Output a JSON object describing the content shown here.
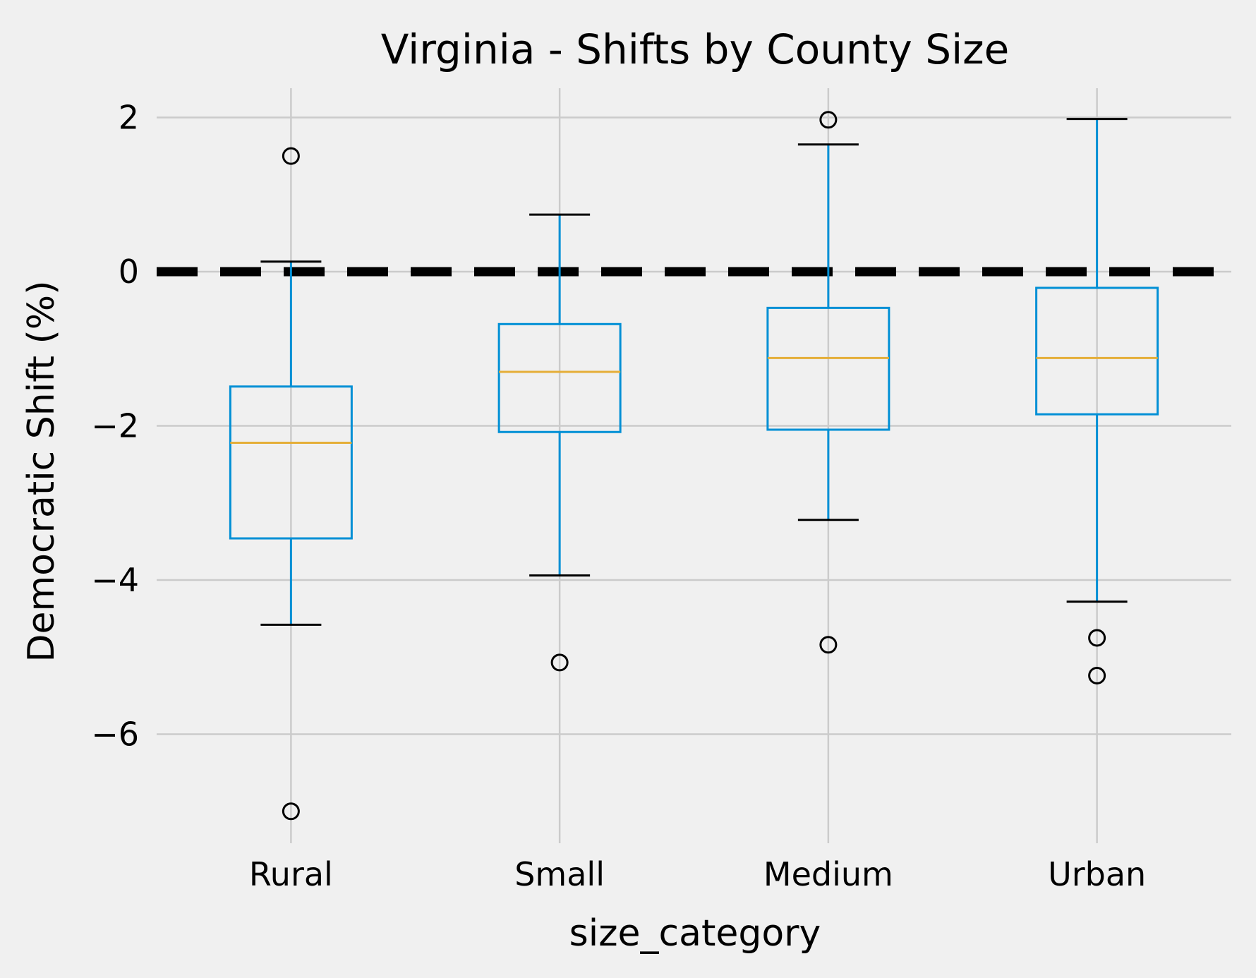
{
  "chart_data": {
    "type": "boxplot",
    "title": "Virginia - Shifts by County Size",
    "xlabel": "size_category",
    "ylabel": "Democratic Shift (%)",
    "ylim": [
      -7.4,
      2.4
    ],
    "yticks": [
      -6,
      -4,
      -2,
      0,
      2
    ],
    "ytick_labels": [
      "−6",
      "−4",
      "−2",
      "0",
      "2"
    ],
    "grid": true,
    "reference_line": {
      "y": 0,
      "style": "dashed",
      "color": "#000000"
    },
    "categories": [
      "Rural",
      "Small",
      "Medium",
      "Urban"
    ],
    "boxes": [
      {
        "category": "Rural",
        "whisker_low": -4.58,
        "q1": -3.46,
        "median": -2.22,
        "q3": -1.49,
        "whisker_high": 0.13,
        "outliers": [
          1.5,
          -7.0
        ]
      },
      {
        "category": "Small",
        "whisker_low": -3.94,
        "q1": -2.08,
        "median": -1.3,
        "q3": -0.68,
        "whisker_high": 0.74,
        "outliers": [
          -5.07
        ]
      },
      {
        "category": "Medium",
        "whisker_low": -3.22,
        "q1": -2.05,
        "median": -1.12,
        "q3": -0.47,
        "whisker_high": 1.65,
        "outliers": [
          1.97,
          -4.84
        ]
      },
      {
        "category": "Urban",
        "whisker_low": -4.28,
        "q1": -1.85,
        "median": -1.12,
        "q3": -0.21,
        "whisker_high": 1.98,
        "outliers": [
          -4.75,
          -5.24
        ]
      }
    ],
    "colors": {
      "box": "#008fd5",
      "median": "#e5ae38",
      "whisker_cap": "#000000",
      "outlier": "#000000",
      "grid": "#cbcbcb",
      "background": "#f0f0f0"
    }
  }
}
